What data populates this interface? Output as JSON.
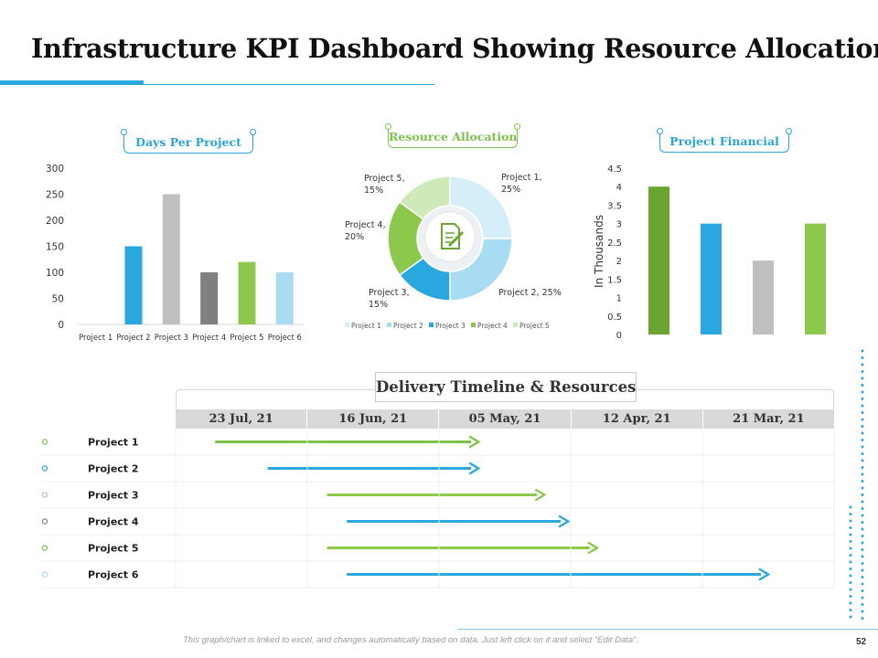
{
  "title": "Infrastructure KPI Dashboard Showing Resource Allocation",
  "footer_note": "This graph/chart is linked to excel, and changes automatically based on data. Just left click on it and select “Edit Data”.",
  "page_number": "52",
  "chart_data": [
    {
      "type": "bar",
      "title": "Days Per Project",
      "categories": [
        "Project 1",
        "Project 2",
        "Project 3",
        "Project 4",
        "Project 5",
        "Project 6"
      ],
      "values": [
        0,
        150,
        250,
        100,
        120,
        100
      ],
      "colors": [
        "#29a8e0",
        "#29a8e0",
        "#bfbfbf",
        "#7f7f7f",
        "#8cc84b",
        "#a9dcf2"
      ],
      "ylim": [
        0,
        300
      ],
      "yticks": [
        "0",
        "50",
        "100",
        "150",
        "200",
        "250",
        "300"
      ],
      "xlabel": "",
      "ylabel": ""
    },
    {
      "type": "pie",
      "title": "Resource Allocation",
      "labels": [
        "Project 1",
        "Project 2",
        "Project 3",
        "Project 4",
        "Project 5"
      ],
      "values": [
        25,
        25,
        15,
        20,
        15
      ],
      "slice_labels": [
        [
          "Project 1,",
          "25%"
        ],
        [
          "Project 2, 25%"
        ],
        [
          "Project 3,",
          "15%"
        ],
        [
          "Project 4,",
          "20%"
        ],
        [
          "Project 5,",
          "15%"
        ]
      ],
      "colors": [
        "#d6eef9",
        "#a7dcf2",
        "#29a8e0",
        "#8cc84b",
        "#d0e9b8"
      ],
      "legend_position": "bottom",
      "center_icon": "document-pen-icon"
    },
    {
      "type": "bar",
      "title": "Project Financial",
      "categories": [
        "",
        "",
        "",
        ""
      ],
      "values": [
        4,
        3,
        2,
        3
      ],
      "colors": [
        "#6aa62f",
        "#29a8e0",
        "#bfbfbf",
        "#8cc84b"
      ],
      "ylim": [
        0,
        4.5
      ],
      "yticks": [
        "0",
        "0.5",
        "1",
        "1.5",
        "2",
        "2.5",
        "3",
        "3.5",
        "4",
        "4.5"
      ],
      "xlabel": "",
      "ylabel": "In Thousands"
    }
  ],
  "gantt": {
    "title": "Delivery Timeline & Resources",
    "columns": [
      "23 Jul, 21",
      "16 Jun, 21",
      "05 May, 21",
      "12 Apr, 21",
      "21 Mar, 21"
    ],
    "rows": [
      {
        "label": "Project 1",
        "start": 0.3,
        "end": 2.3,
        "color": "#7dc34a",
        "dot": "#7dc34a"
      },
      {
        "label": "Project 2",
        "start": 0.7,
        "end": 2.3,
        "color": "#29a8e0",
        "dot": "#29a8e0"
      },
      {
        "label": "Project 3",
        "start": 1.15,
        "end": 2.8,
        "color": "#8cc84b",
        "dot": "#bfbfbf"
      },
      {
        "label": "Project 4",
        "start": 1.3,
        "end": 2.98,
        "color": "#29a8e0",
        "dot": "#7f7f7f"
      },
      {
        "label": "Project 5",
        "start": 1.15,
        "end": 3.2,
        "color": "#8cc84b",
        "dot": "#7dc34a"
      },
      {
        "label": "Project 6",
        "start": 1.3,
        "end": 4.5,
        "color": "#29a8e0",
        "dot": "#a9dcf2"
      }
    ]
  }
}
